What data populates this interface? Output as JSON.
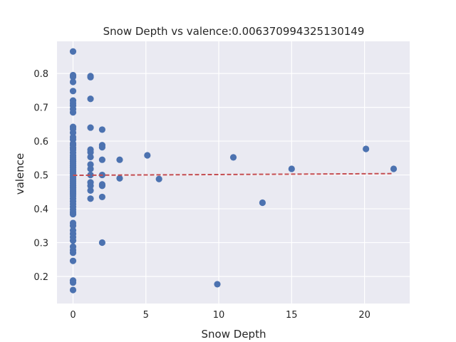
{
  "chart_data": {
    "type": "scatter",
    "title": "Snow Depth vs valence:0.006370994325130149",
    "xlabel": "Snow Depth",
    "ylabel": "valence",
    "xlim": [
      -1.1,
      23.1
    ],
    "ylim": [
      0.12,
      0.895
    ],
    "xticks": [
      0,
      5,
      10,
      15,
      20
    ],
    "yticks": [
      0.2,
      0.3,
      0.4,
      0.5,
      0.6,
      0.7,
      0.8
    ],
    "xtick_labels": [
      "0",
      "5",
      "10",
      "15",
      "20"
    ],
    "ytick_labels": [
      "0.2",
      "0.3",
      "0.4",
      "0.5",
      "0.6",
      "0.7",
      "0.8"
    ],
    "grid": true,
    "colors": {
      "background": "#eaeaf2",
      "grid": "#ffffff",
      "points": "#4c72b0",
      "trend": "#c44e52"
    },
    "series": [
      {
        "points": [
          [
            0,
            0.865
          ],
          [
            0,
            0.795
          ],
          [
            0,
            0.79
          ],
          [
            0,
            0.775
          ],
          [
            0,
            0.748
          ],
          [
            0,
            0.72
          ],
          [
            0,
            0.712
          ],
          [
            0,
            0.705
          ],
          [
            0,
            0.695
          ],
          [
            0,
            0.685
          ],
          [
            0,
            0.642
          ],
          [
            0,
            0.636
          ],
          [
            0,
            0.625
          ],
          [
            0,
            0.612
          ],
          [
            0,
            0.605
          ],
          [
            0,
            0.593
          ],
          [
            0,
            0.588
          ],
          [
            0,
            0.58
          ],
          [
            0,
            0.574
          ],
          [
            0,
            0.566
          ],
          [
            0,
            0.558
          ],
          [
            0,
            0.552
          ],
          [
            0,
            0.546
          ],
          [
            0,
            0.54
          ],
          [
            0,
            0.534
          ],
          [
            0,
            0.528
          ],
          [
            0,
            0.522
          ],
          [
            0,
            0.516
          ],
          [
            0,
            0.51
          ],
          [
            0,
            0.504
          ],
          [
            0,
            0.498
          ],
          [
            0,
            0.492
          ],
          [
            0,
            0.486
          ],
          [
            0,
            0.48
          ],
          [
            0,
            0.474
          ],
          [
            0,
            0.468
          ],
          [
            0,
            0.462
          ],
          [
            0,
            0.456
          ],
          [
            0,
            0.45
          ],
          [
            0,
            0.444
          ],
          [
            0,
            0.438
          ],
          [
            0,
            0.43
          ],
          [
            0,
            0.422
          ],
          [
            0,
            0.414
          ],
          [
            0,
            0.406
          ],
          [
            0,
            0.398
          ],
          [
            0,
            0.39
          ],
          [
            0,
            0.384
          ],
          [
            0,
            0.358
          ],
          [
            0,
            0.35
          ],
          [
            0,
            0.336
          ],
          [
            0,
            0.326
          ],
          [
            0,
            0.316
          ],
          [
            0,
            0.306
          ],
          [
            0,
            0.288
          ],
          [
            0,
            0.278
          ],
          [
            0,
            0.27
          ],
          [
            0,
            0.246
          ],
          [
            0,
            0.188
          ],
          [
            0,
            0.182
          ],
          [
            0,
            0.16
          ],
          [
            1.2,
            0.792
          ],
          [
            1.2,
            0.789
          ],
          [
            1.2,
            0.725
          ],
          [
            1.2,
            0.64
          ],
          [
            1.2,
            0.575
          ],
          [
            1.2,
            0.567
          ],
          [
            1.2,
            0.553
          ],
          [
            1.2,
            0.531
          ],
          [
            1.2,
            0.518
          ],
          [
            1.2,
            0.5
          ],
          [
            1.2,
            0.478
          ],
          [
            1.2,
            0.468
          ],
          [
            1.2,
            0.454
          ],
          [
            1.2,
            0.43
          ],
          [
            2.0,
            0.634
          ],
          [
            2.0,
            0.588
          ],
          [
            2.0,
            0.582
          ],
          [
            2.0,
            0.545
          ],
          [
            2.0,
            0.5
          ],
          [
            2.0,
            0.472
          ],
          [
            2.0,
            0.468
          ],
          [
            2.0,
            0.435
          ],
          [
            2.0,
            0.3
          ],
          [
            3.2,
            0.545
          ],
          [
            3.2,
            0.49
          ],
          [
            5.1,
            0.558
          ],
          [
            5.9,
            0.488
          ],
          [
            9.9,
            0.177
          ],
          [
            11.0,
            0.552
          ],
          [
            13.0,
            0.418
          ],
          [
            15.0,
            0.518
          ],
          [
            20.1,
            0.577
          ],
          [
            22.0,
            0.518
          ]
        ]
      }
    ],
    "trendline": {
      "x": [
        0,
        22.0
      ],
      "y": [
        0.499,
        0.504
      ],
      "style": "dashed"
    }
  }
}
